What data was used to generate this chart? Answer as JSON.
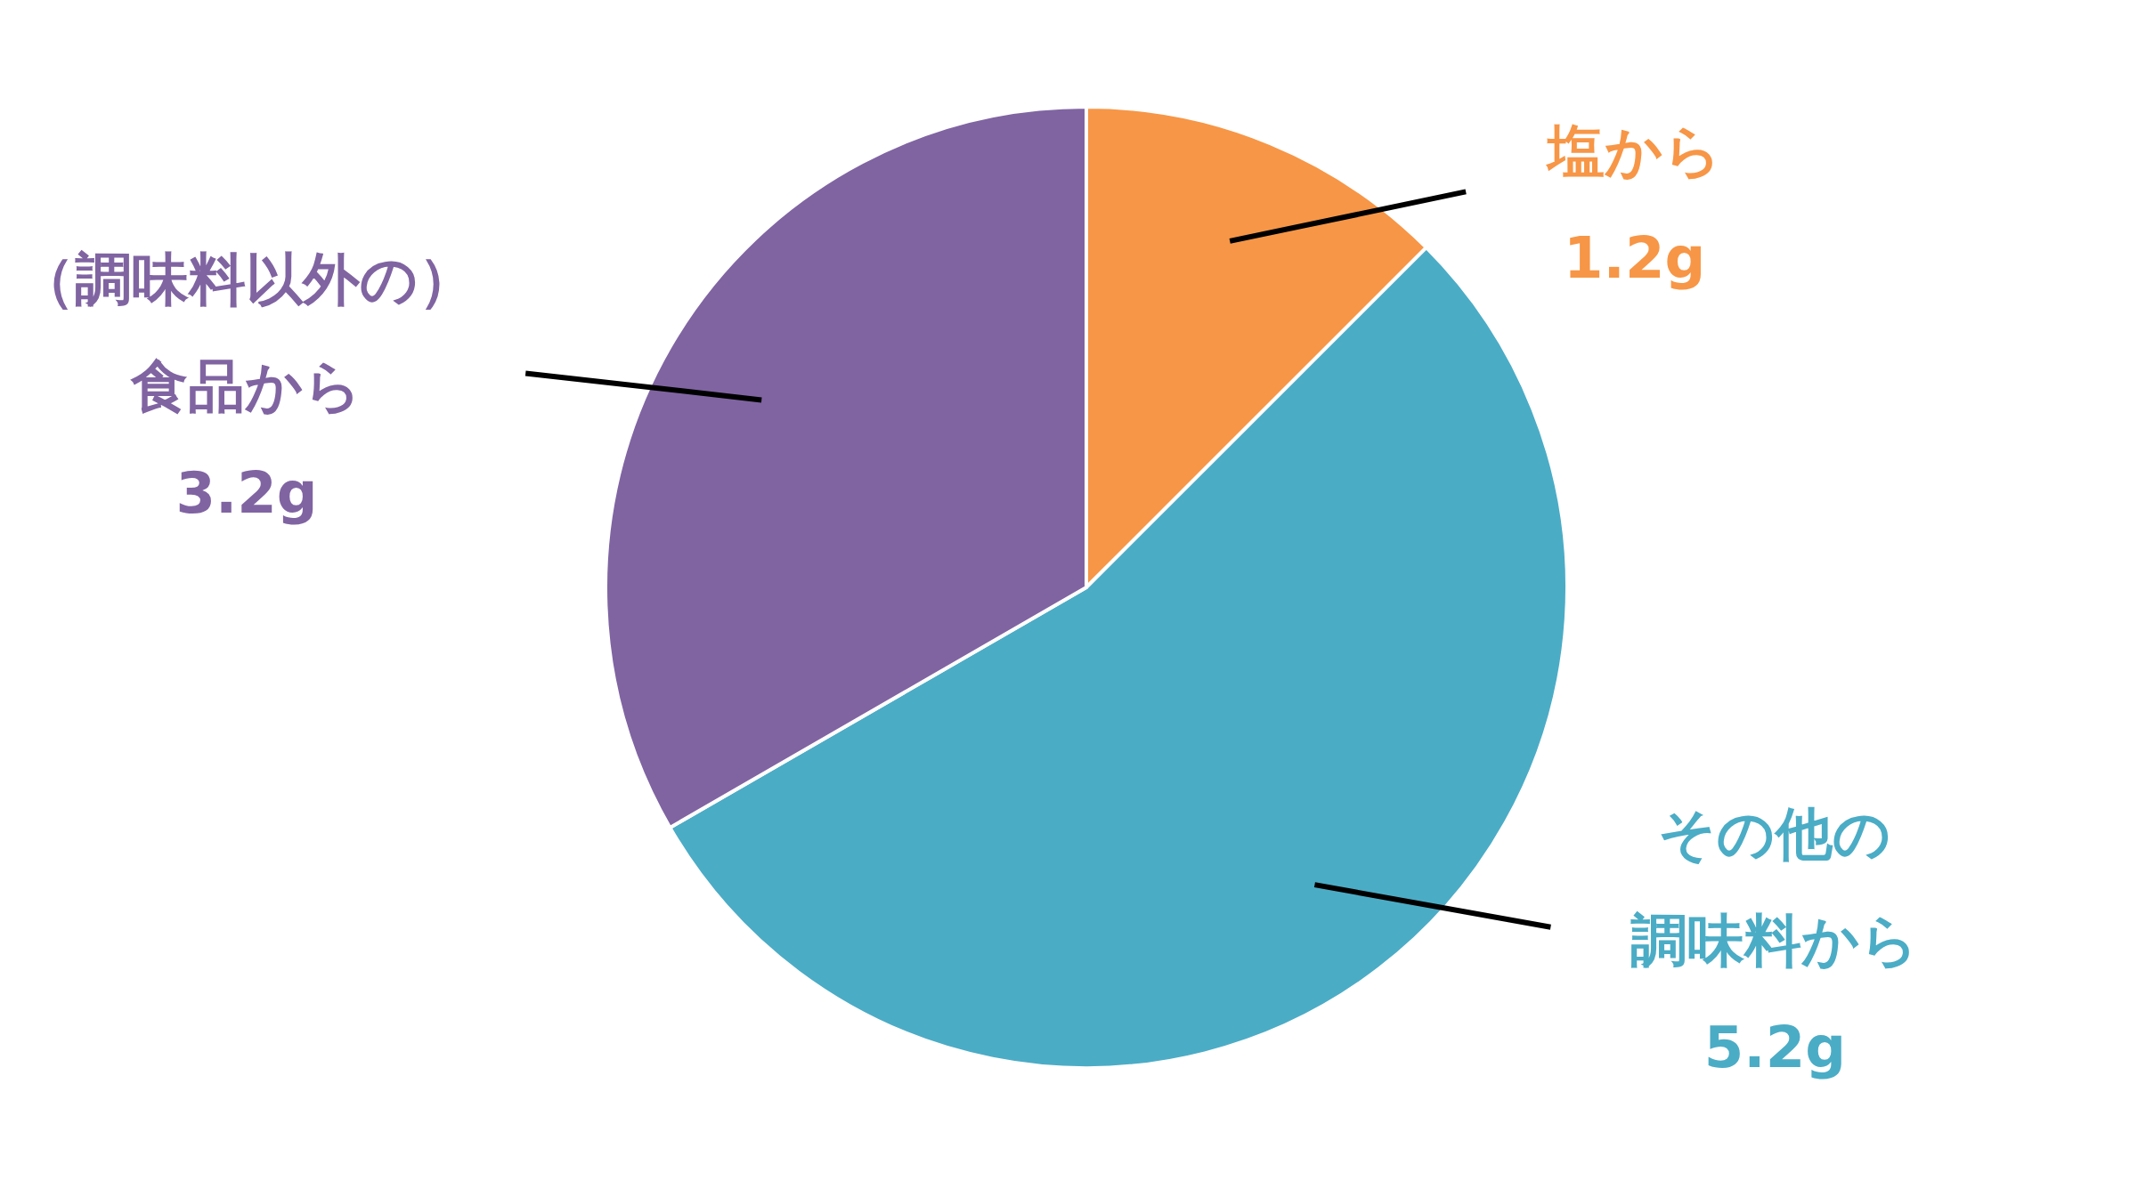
{
  "chart_data": {
    "type": "pie",
    "categories": [
      "塩から",
      "その他の調味料から",
      "（調味料以外の）食品から"
    ],
    "values": [
      1.2,
      5.2,
      3.2
    ],
    "colors": [
      "#f79646",
      "#4bacc6",
      "#8064a2"
    ],
    "value_labels": [
      "1.2g",
      "5.2g",
      "3.2g"
    ]
  }
}
